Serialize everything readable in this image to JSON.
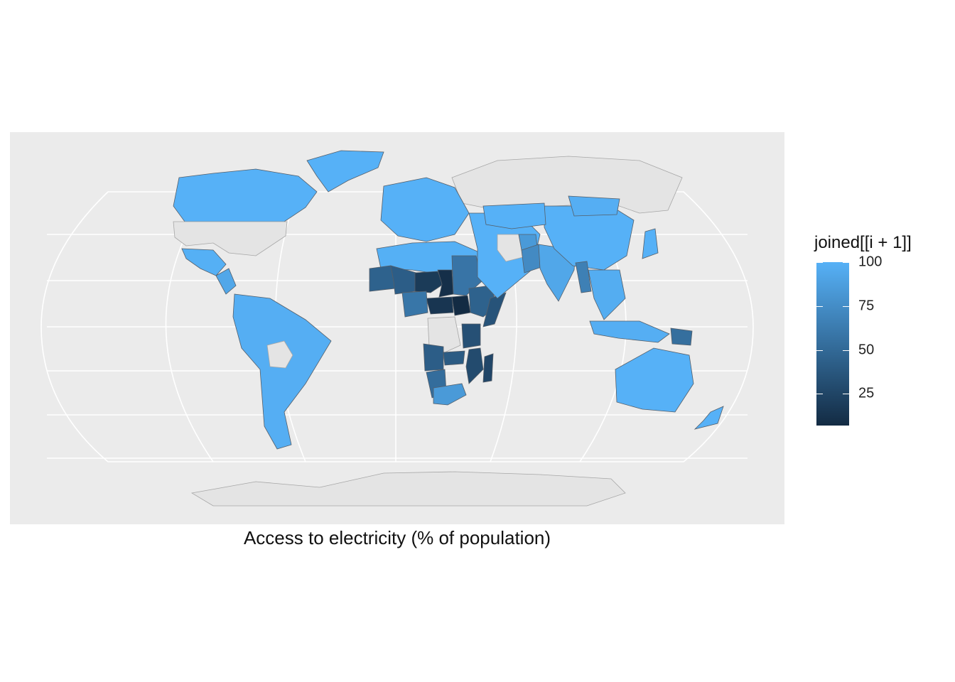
{
  "caption": "Access to electricity (% of population)",
  "legend": {
    "title": "joined[[i + 1]]",
    "ticks": [
      {
        "value": 100,
        "label": "100"
      },
      {
        "value": 75,
        "label": "75"
      },
      {
        "value": 50,
        "label": "50"
      },
      {
        "value": 25,
        "label": "25"
      }
    ],
    "min": 7,
    "max": 100,
    "color_low": "#132b43",
    "color_high": "#56b1f7"
  },
  "colors": {
    "panel_background": "#ebebeb",
    "grid": "#ffffff",
    "no_data": "#e4e4e4",
    "border": "#555e68"
  },
  "chart_data": {
    "type": "choropleth",
    "projection": "robinson",
    "grid": true,
    "legend_position": "right",
    "value_range": [
      7,
      100
    ],
    "regions": [
      {
        "region": "Canada",
        "value": 100
      },
      {
        "region": "United States",
        "value": null
      },
      {
        "region": "Greenland",
        "value": 100
      },
      {
        "region": "Mexico",
        "value": 99
      },
      {
        "region": "Central America",
        "value": 93
      },
      {
        "region": "South America",
        "value": 98
      },
      {
        "region": "Bolivia",
        "value": null
      },
      {
        "region": "Russia",
        "value": null
      },
      {
        "region": "Europe",
        "value": 100
      },
      {
        "region": "North Africa",
        "value": 99
      },
      {
        "region": "Mauritania",
        "value": 45
      },
      {
        "region": "Mali",
        "value": 42
      },
      {
        "region": "Niger",
        "value": 18
      },
      {
        "region": "Chad",
        "value": 10
      },
      {
        "region": "Sudan",
        "value": 58
      },
      {
        "region": "South Sudan",
        "value": 7
      },
      {
        "region": "Central African Republic",
        "value": 14
      },
      {
        "region": "Ethiopia",
        "value": 45
      },
      {
        "region": "Somalia",
        "value": 35
      },
      {
        "region": "Nigeria",
        "value": 59
      },
      {
        "region": "Democratic Republic of the Congo",
        "value": null
      },
      {
        "region": "Tanzania",
        "value": 33
      },
      {
        "region": "Mozambique",
        "value": 29
      },
      {
        "region": "Madagascar",
        "value": 26
      },
      {
        "region": "Zambia",
        "value": 40
      },
      {
        "region": "Angola",
        "value": 42
      },
      {
        "region": "Namibia",
        "value": 53
      },
      {
        "region": "South Africa",
        "value": 84
      },
      {
        "region": "Middle East",
        "value": 100
      },
      {
        "region": "Iran",
        "value": null
      },
      {
        "region": "Afghanistan",
        "value": 84
      },
      {
        "region": "Pakistan",
        "value": 73
      },
      {
        "region": "India",
        "value": 93
      },
      {
        "region": "China",
        "value": 100
      },
      {
        "region": "Kazakhstan",
        "value": 100
      },
      {
        "region": "Mongolia",
        "value": 98
      },
      {
        "region": "Myanmar",
        "value": 66
      },
      {
        "region": "Southeast Asia",
        "value": 97
      },
      {
        "region": "Indonesia",
        "value": 98
      },
      {
        "region": "Papua New Guinea",
        "value": 54
      },
      {
        "region": "Japan",
        "value": 100
      },
      {
        "region": "Australia",
        "value": 100
      },
      {
        "region": "New Zealand",
        "value": 100
      },
      {
        "region": "Antarctica",
        "value": null
      }
    ]
  }
}
